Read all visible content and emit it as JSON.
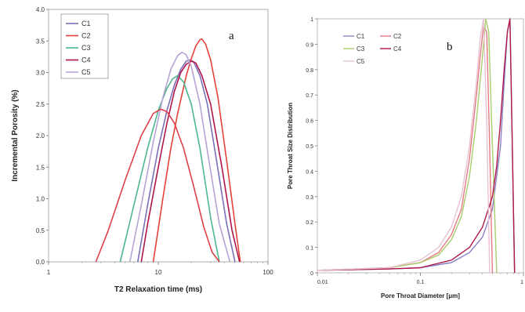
{
  "chart_data": [
    {
      "type": "line",
      "panel_label": "a",
      "xlabel": "T2 Relaxation time (ms)",
      "ylabel": "Incremental Porosity (%)",
      "xscale": "log",
      "xlim": [
        1,
        100
      ],
      "ylim": [
        0,
        4.0
      ],
      "xticks": [
        "1",
        "10",
        "100"
      ],
      "yticks": [
        "0.0",
        "0.5",
        "1.0",
        "1.5",
        "2.0",
        "2.5",
        "3.0",
        "3.5",
        "4.0"
      ],
      "legend_position": "top-left",
      "series": [
        {
          "name": "C1",
          "color": "#7a6fb8",
          "x": [
            6.5,
            8,
            10,
            12,
            14,
            16,
            18,
            19.5,
            21,
            24,
            28,
            34,
            42,
            50
          ],
          "y": [
            0,
            0.9,
            1.8,
            2.4,
            2.8,
            3.05,
            3.18,
            3.2,
            3.17,
            2.95,
            2.5,
            1.6,
            0.6,
            0
          ]
        },
        {
          "name": "C2",
          "color": "#e5413b",
          "x": [
            9,
            11,
            13,
            15,
            18,
            20,
            22,
            24,
            25,
            27,
            30,
            35,
            42,
            50,
            56
          ],
          "y": [
            0,
            1.0,
            1.8,
            2.35,
            2.95,
            3.22,
            3.42,
            3.52,
            3.53,
            3.45,
            3.2,
            2.6,
            1.6,
            0.6,
            0
          ]
        },
        {
          "name": "C3",
          "color": "#4bb88a",
          "x": [
            4.5,
            6,
            8,
            10,
            12,
            13.5,
            15,
            17,
            20,
            24,
            30,
            36
          ],
          "y": [
            0,
            0.9,
            1.8,
            2.4,
            2.75,
            2.9,
            2.95,
            2.85,
            2.5,
            1.8,
            0.7,
            0
          ]
        },
        {
          "name": "C4",
          "color": "#b0154a",
          "x": [
            7,
            8,
            10,
            12,
            14,
            16,
            18,
            20,
            22,
            25,
            30,
            38,
            47,
            55
          ],
          "y": [
            0,
            0.6,
            1.5,
            2.2,
            2.7,
            3.0,
            3.13,
            3.18,
            3.15,
            2.95,
            2.5,
            1.5,
            0.5,
            0
          ]
        },
        {
          "name": "C5",
          "color": "#b7a3d4",
          "x": [
            5.5,
            7,
            9,
            11,
            13,
            15,
            16.5,
            18,
            20,
            24,
            29,
            36,
            45
          ],
          "y": [
            0,
            0.9,
            1.9,
            2.6,
            3.05,
            3.27,
            3.32,
            3.28,
            3.1,
            2.5,
            1.6,
            0.6,
            0
          ]
        },
        {
          "name": "",
          "color": "#e0404a",
          "x": [
            2.7,
            3.5,
            5,
            7,
            9,
            10.5,
            12,
            14,
            17,
            21,
            26,
            31,
            36
          ],
          "y": [
            0,
            0.5,
            1.3,
            2.0,
            2.35,
            2.42,
            2.38,
            2.2,
            1.8,
            1.2,
            0.55,
            0.15,
            0
          ]
        }
      ]
    },
    {
      "type": "line",
      "panel_label": "b",
      "xlabel": "Pore Throat Diameter [μm]",
      "ylabel": "Pore Throat  Size Distribution",
      "xscale": "log",
      "xlim": [
        0.01,
        1
      ],
      "ylim": [
        0,
        1
      ],
      "xticks": [
        "0.01",
        "0.1",
        "1"
      ],
      "yticks": [
        "0",
        "0.1",
        "0.2",
        "0.3",
        "0.4",
        "0.5",
        "0.6",
        "0.7",
        "0.8",
        "0.9",
        "1"
      ],
      "legend_position": "top-left",
      "series": [
        {
          "name": "C1",
          "color": "#8a7fc4",
          "x": [
            0.01,
            0.05,
            0.1,
            0.2,
            0.3,
            0.4,
            0.5,
            0.6,
            0.65,
            0.7,
            0.74,
            0.78,
            0.82
          ],
          "y": [
            0.01,
            0.015,
            0.02,
            0.04,
            0.08,
            0.14,
            0.25,
            0.5,
            0.75,
            0.95,
            1.0,
            0.5,
            0
          ]
        },
        {
          "name": "C2",
          "color": "#e77a80",
          "x": [
            0.01,
            0.05,
            0.1,
            0.15,
            0.2,
            0.25,
            0.3,
            0.35,
            0.38,
            0.41,
            0.44,
            0.47,
            0.5
          ],
          "y": [
            0.01,
            0.02,
            0.04,
            0.08,
            0.15,
            0.25,
            0.45,
            0.7,
            0.85,
            0.97,
            0.95,
            0.5,
            0
          ]
        },
        {
          "name": "C3",
          "color": "#a9cc6d",
          "x": [
            0.01,
            0.05,
            0.1,
            0.15,
            0.2,
            0.25,
            0.3,
            0.35,
            0.4,
            0.43,
            0.46,
            0.5,
            0.55
          ],
          "y": [
            0.01,
            0.02,
            0.04,
            0.07,
            0.13,
            0.22,
            0.38,
            0.6,
            0.85,
            1.0,
            0.95,
            0.5,
            0
          ]
        },
        {
          "name": "C4",
          "color": "#b0184c",
          "x": [
            0.01,
            0.05,
            0.1,
            0.2,
            0.3,
            0.4,
            0.5,
            0.55,
            0.6,
            0.65,
            0.7,
            0.74,
            0.78,
            0.82
          ],
          "y": [
            0.01,
            0.015,
            0.02,
            0.05,
            0.1,
            0.18,
            0.3,
            0.42,
            0.6,
            0.8,
            0.95,
            1.0,
            0.5,
            0
          ]
        },
        {
          "name": "C5",
          "color": "#e8c1d2",
          "x": [
            0.01,
            0.05,
            0.1,
            0.15,
            0.2,
            0.25,
            0.3,
            0.35,
            0.38,
            0.41,
            0.44,
            0.47
          ],
          "y": [
            0.01,
            0.02,
            0.05,
            0.1,
            0.18,
            0.3,
            0.5,
            0.75,
            0.92,
            1.0,
            0.6,
            0
          ]
        }
      ]
    }
  ]
}
